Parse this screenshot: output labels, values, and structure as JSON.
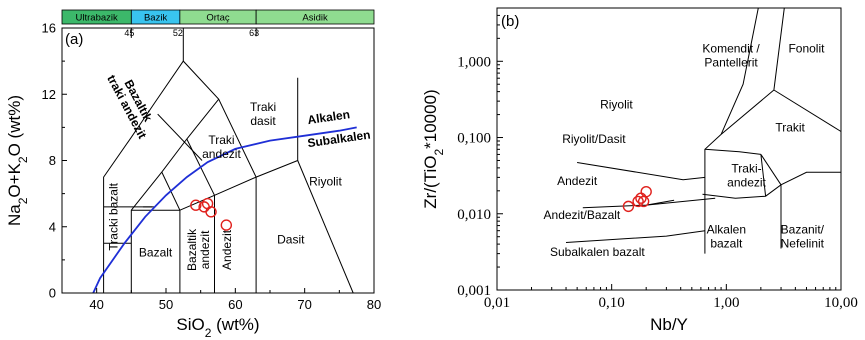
{
  "chart_data": [
    {
      "type": "scatter",
      "panel_label": "(a)",
      "xlabel": "SiO₂ (wt%)",
      "ylabel": "Na₂O+K₂O (wt%)",
      "xlim": [
        35,
        80
      ],
      "ylim": [
        0,
        16
      ],
      "xticks": [
        40,
        50,
        60,
        70,
        80
      ],
      "yticks": [
        0,
        4,
        8,
        12,
        16
      ],
      "silica_bands": [
        {
          "label": "Ultrabazik",
          "from": 35,
          "to": 45,
          "color": "#3cb86a"
        },
        {
          "label": "Bazik",
          "from": 45,
          "to": 52,
          "color": "#39c4ef"
        },
        {
          "label": "Ortaç",
          "from": 52,
          "to": 63,
          "color": "#8fdc90"
        },
        {
          "label": "Asidik",
          "from": 63,
          "to": 80,
          "color": "#8fdc90"
        }
      ],
      "band_ticks": [
        "45",
        "52",
        "63"
      ],
      "field_labels": [
        {
          "text": "Bazaltik traki andezit",
          "x": 45.5,
          "y": 11.5
        },
        {
          "text": "Traki dasit",
          "x": 64,
          "y": 11
        },
        {
          "text": "Traki andezit",
          "x": 58,
          "y": 9
        },
        {
          "text": "Tracki bazalt",
          "x": 43,
          "y": 4.6
        },
        {
          "text": "Bazalt",
          "x": 48.5,
          "y": 2.2
        },
        {
          "text": "Bazaltik andezit",
          "x": 54.3,
          "y": 2.6
        },
        {
          "text": "Andezit",
          "x": 59.4,
          "y": 2.6
        },
        {
          "text": "Dasit",
          "x": 68,
          "y": 3
        },
        {
          "text": "Riyolit",
          "x": 73,
          "y": 6.5
        }
      ],
      "series_labels": {
        "upper": "Alkalen",
        "lower": "Subalkalen"
      },
      "boundary_x": [
        41,
        45,
        52,
        57,
        63,
        69,
        77
      ],
      "alkalic_subalkalic_line": {
        "x": [
          39.5,
          40.5,
          44,
          47,
          50,
          53,
          56,
          60,
          65,
          70,
          75,
          77.5
        ],
        "y": [
          0,
          0.9,
          3,
          4.6,
          5.9,
          7,
          7.9,
          8.7,
          9.2,
          9.5,
          9.8,
          10
        ]
      },
      "samples": {
        "x": [
          54.3,
          55.5,
          56.0,
          56.5,
          58.7
        ],
        "y": [
          5.3,
          5.2,
          5.4,
          4.9,
          4.1
        ]
      }
    },
    {
      "type": "scatter",
      "panel_label": "(b)",
      "xlabel": "Nb/Y",
      "ylabel": "Zr/(TiO₂*10000)",
      "xscale": "log",
      "yscale": "log",
      "xlim": [
        0.01,
        10
      ],
      "ylim": [
        0.001,
        5
      ],
      "xticks": [
        "0,01",
        "0,10",
        "1,00",
        "10,00"
      ],
      "yticks": [
        "0,001",
        "0,010",
        "0,100",
        "1,000"
      ],
      "field_labels": [
        {
          "text": "Komendit / Pantellerit",
          "x": 1.1,
          "y": 1.3
        },
        {
          "text": "Fonolit",
          "x": 5.0,
          "y": 1.3
        },
        {
          "text": "Riyolit",
          "x": 0.11,
          "y": 0.24
        },
        {
          "text": "Trakit",
          "x": 3.6,
          "y": 0.12
        },
        {
          "text": "Riyolit/Dasit",
          "x": 0.07,
          "y": 0.085
        },
        {
          "text": "Traki- andezit",
          "x": 1.5,
          "y": 0.035
        },
        {
          "text": "Andezit",
          "x": 0.05,
          "y": 0.024
        },
        {
          "text": "Andezit/Bazalt",
          "x": 0.055,
          "y": 0.0085
        },
        {
          "text": "Alkalen bazalt",
          "x": 1.0,
          "y": 0.0055
        },
        {
          "text": "Bazanit/ Nefelinit",
          "x": 4.6,
          "y": 0.0055
        },
        {
          "text": "Subalkalen bazalt",
          "x": 0.075,
          "y": 0.0028
        }
      ],
      "samples": {
        "x": [
          0.14,
          0.17,
          0.18,
          0.19,
          0.2
        ],
        "y": [
          0.0125,
          0.0145,
          0.016,
          0.0145,
          0.0195
        ]
      }
    }
  ]
}
